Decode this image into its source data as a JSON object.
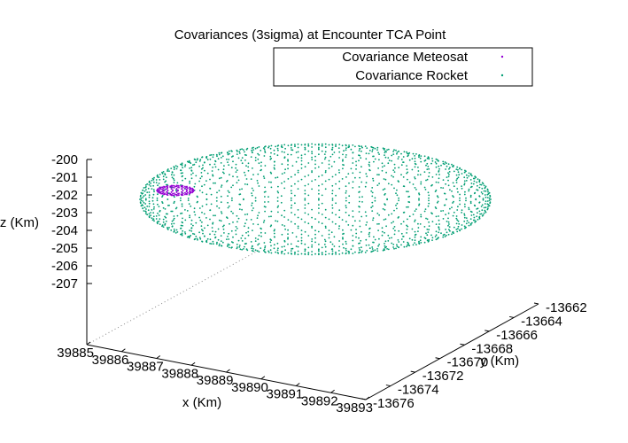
{
  "chart_data": {
    "type": "scatter",
    "title": "Covariances (3sigma) at Encounter TCA Point",
    "xlabel": "x (Km)",
    "ylabel": "y (Km)",
    "zlabel": "z (Km)",
    "xlim": [
      39885,
      39893
    ],
    "ylim": [
      -13676,
      -13662
    ],
    "zlim": [
      -207,
      -200
    ],
    "x_ticks": [
      "39885",
      "39886",
      "39887",
      "39888",
      "39889",
      "39890",
      "39891",
      "39892",
      "39893"
    ],
    "y_ticks": [
      "-13676",
      "-13674",
      "-13672",
      "-13670",
      "-13668",
      "-13666",
      "-13664",
      "-13662"
    ],
    "z_ticks": [
      "-200",
      "-201",
      "-202",
      "-203",
      "-204",
      "-205",
      "-206",
      "-207"
    ],
    "grid": false,
    "legend_position": "top-right",
    "series": [
      {
        "name": "Covariance Meteosat",
        "color": "#9400d3",
        "marker": "dot",
        "shape": "ellipsoid",
        "center": {
          "x": 39885.6,
          "y": -13672.3,
          "z": -201.8
        },
        "semi_axes": {
          "x": 0.35,
          "y": 0.4,
          "z": 0.25
        }
      },
      {
        "name": "Covariance Rocket",
        "color": "#009e73",
        "marker": "dot",
        "shape": "ellipsoid",
        "center": {
          "x": 39889.2,
          "y": -13669.0,
          "z": -204.9
        },
        "semi_axes": {
          "x": 3.6,
          "y": 4.6,
          "z": 1.2
        }
      }
    ]
  }
}
